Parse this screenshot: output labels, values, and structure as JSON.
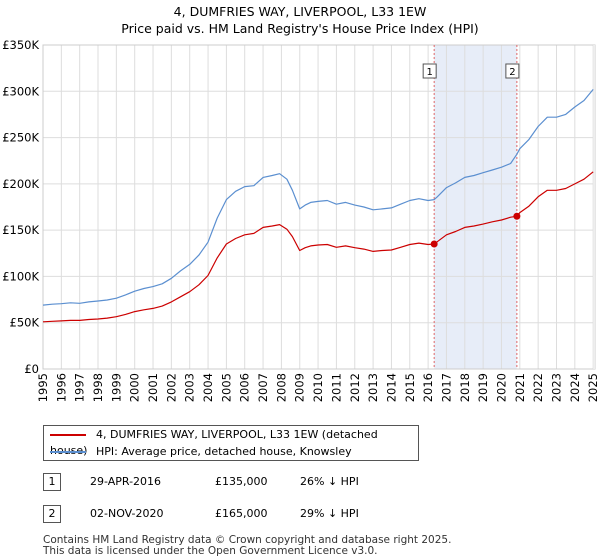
{
  "header": {
    "title": "4, DUMFRIES WAY, LIVERPOOL, L33 1EW",
    "subtitle": "Price paid vs. HM Land Registry's House Price Index (HPI)"
  },
  "chart_data": {
    "type": "line",
    "title": "4, DUMFRIES WAY, LIVERPOOL, L33 1EW",
    "subtitle": "Price paid vs. HM Land Registry's House Price Index (HPI)",
    "xlim": [
      1995,
      2025.1
    ],
    "ylim": [
      0,
      350000
    ],
    "y_ticks": [
      {
        "value": 0,
        "label": "£0"
      },
      {
        "value": 50000,
        "label": "£50K"
      },
      {
        "value": 100000,
        "label": "£100K"
      },
      {
        "value": 150000,
        "label": "£150K"
      },
      {
        "value": 200000,
        "label": "£200K"
      },
      {
        "value": 250000,
        "label": "£250K"
      },
      {
        "value": 300000,
        "label": "£300K"
      },
      {
        "value": 350000,
        "label": "£350K"
      }
    ],
    "x_ticks": [
      "1995",
      "1996",
      "1997",
      "1998",
      "1999",
      "2000",
      "2001",
      "2002",
      "2003",
      "2004",
      "2005",
      "2006",
      "2007",
      "2008",
      "2009",
      "2010",
      "2011",
      "2012",
      "2013",
      "2014",
      "2015",
      "2016",
      "2017",
      "2018",
      "2019",
      "2020",
      "2021",
      "2022",
      "2023",
      "2024",
      "2025"
    ],
    "grid": true,
    "series": [
      {
        "name": "HPI: Average price, detached house, Knowsley",
        "color": "#5b8fd0",
        "x": [
          1995.0,
          1995.5,
          1996.0,
          1996.5,
          1997.0,
          1997.5,
          1998.0,
          1998.5,
          1999.0,
          1999.5,
          2000.0,
          2000.5,
          2001.0,
          2001.5,
          2002.0,
          2002.5,
          2003.0,
          2003.5,
          2004.0,
          2004.5,
          2005.0,
          2005.5,
          2006.0,
          2006.5,
          2007.0,
          2007.5,
          2007.9,
          2008.3,
          2008.6,
          2009.0,
          2009.3,
          2009.6,
          2010.0,
          2010.5,
          2011.0,
          2011.5,
          2012.0,
          2012.5,
          2013.0,
          2013.5,
          2014.0,
          2014.5,
          2015.0,
          2015.5,
          2016.0,
          2016.33,
          2016.5,
          2017.0,
          2017.5,
          2018.0,
          2018.5,
          2019.0,
          2019.5,
          2020.0,
          2020.5,
          2020.84,
          2021.0,
          2021.5,
          2022.0,
          2022.5,
          2023.0,
          2023.5,
          2024.0,
          2024.5,
          2025.0
        ],
        "values": [
          69000,
          70000,
          70500,
          71500,
          71000,
          72500,
          73500,
          74500,
          76500,
          80000,
          84000,
          87000,
          89000,
          92000,
          98000,
          106000,
          113000,
          123000,
          137000,
          163000,
          183000,
          192000,
          197000,
          198000,
          207000,
          209000,
          211000,
          205000,
          193000,
          173000,
          177000,
          180000,
          181000,
          182000,
          178000,
          180000,
          177000,
          175000,
          172000,
          173000,
          174000,
          178000,
          182000,
          184000,
          182000,
          183000,
          186000,
          196000,
          201000,
          207000,
          209000,
          212000,
          215000,
          218000,
          222000,
          232000,
          238000,
          248000,
          262000,
          272000,
          272000,
          275000,
          283000,
          290000,
          302000
        ]
      },
      {
        "name": "4, DUMFRIES WAY, LIVERPOOL, L33 1EW (detached house)",
        "color": "#cc0000",
        "x": [
          1995.0,
          1995.5,
          1996.0,
          1996.5,
          1997.0,
          1997.5,
          1998.0,
          1998.5,
          1999.0,
          1999.5,
          2000.0,
          2000.5,
          2001.0,
          2001.5,
          2002.0,
          2002.5,
          2003.0,
          2003.5,
          2004.0,
          2004.5,
          2005.0,
          2005.5,
          2006.0,
          2006.5,
          2007.0,
          2007.5,
          2007.9,
          2008.3,
          2008.6,
          2009.0,
          2009.3,
          2009.6,
          2010.0,
          2010.5,
          2011.0,
          2011.5,
          2012.0,
          2012.5,
          2013.0,
          2013.5,
          2014.0,
          2014.5,
          2015.0,
          2015.5,
          2016.0,
          2016.33,
          2016.5,
          2017.0,
          2017.5,
          2018.0,
          2018.5,
          2019.0,
          2019.5,
          2020.0,
          2020.5,
          2020.84,
          2021.0,
          2021.5,
          2022.0,
          2022.5,
          2023.0,
          2023.5,
          2024.0,
          2024.5,
          2025.0
        ],
        "values": [
          51000,
          51500,
          52000,
          52500,
          52500,
          53500,
          54000,
          55000,
          56500,
          59000,
          62000,
          64000,
          65500,
          68000,
          72500,
          78000,
          83500,
          91000,
          101000,
          120000,
          135000,
          141000,
          145000,
          146500,
          153000,
          154500,
          156000,
          151000,
          143000,
          128000,
          131000,
          133000,
          134000,
          134500,
          131500,
          133000,
          131000,
          129500,
          127000,
          128000,
          128500,
          131500,
          134500,
          136000,
          134500,
          135000,
          137500,
          145000,
          148500,
          153000,
          154500,
          156500,
          159000,
          161000,
          164000,
          165000,
          169000,
          176000,
          186000,
          193000,
          193000,
          195000,
          200000,
          205000,
          213000
        ]
      }
    ],
    "sales": [
      {
        "label": "1",
        "date": "29-APR-2016",
        "x": 2016.33,
        "price": 135000,
        "price_label": "£135,000",
        "hpi_label": "26% ↓ HPI"
      },
      {
        "label": "2",
        "date": "02-NOV-2020",
        "x": 2020.84,
        "price": 165000,
        "price_label": "£165,000",
        "hpi_label": "29% ↓ HPI"
      }
    ]
  },
  "legend": {
    "items": [
      {
        "label": "4, DUMFRIES WAY, LIVERPOOL, L33 1EW (detached house)",
        "color": "#cc0000"
      },
      {
        "label": "HPI: Average price, detached house, Knowsley",
        "color": "#5b8fd0"
      }
    ]
  },
  "footer": {
    "line1": "Contains HM Land Registry data © Crown copyright and database right 2025.",
    "line2": "This data is licensed under the Open Government Licence v3.0."
  }
}
